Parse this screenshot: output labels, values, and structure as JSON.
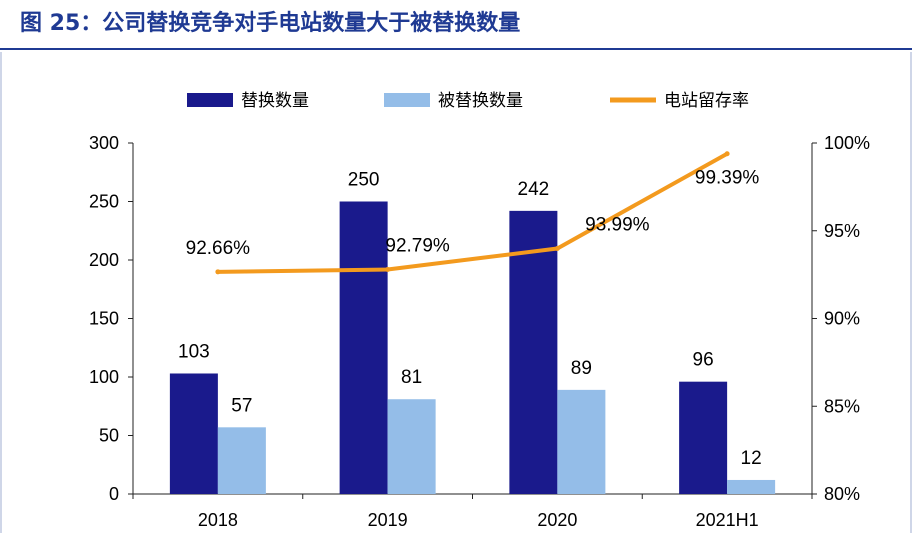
{
  "title": "图 25：公司替换竞争对手电站数量大于被替换数量",
  "chart_data": {
    "type": "bar",
    "categories": [
      "2018",
      "2019",
      "2020",
      "2021H1"
    ],
    "series": [
      {
        "name": "替换数量",
        "type": "bar",
        "axis": "left",
        "color": "#1a1a8c",
        "values": [
          103,
          250,
          242,
          96
        ],
        "labels": [
          "103",
          "250",
          "242",
          "96"
        ]
      },
      {
        "name": "被替换数量",
        "type": "bar",
        "axis": "left",
        "color": "#94bde8",
        "values": [
          57,
          81,
          89,
          12
        ],
        "labels": [
          "57",
          "81",
          "89",
          "12"
        ]
      },
      {
        "name": "电站留存率",
        "type": "line",
        "axis": "right",
        "color": "#f39a1e",
        "values": [
          92.66,
          92.79,
          93.99,
          99.39
        ],
        "labels": [
          "92.66%",
          "92.79%",
          "93.99%",
          "99.39%"
        ]
      }
    ],
    "left_axis": {
      "min": 0,
      "max": 300,
      "ticks": [
        "0",
        "50",
        "100",
        "150",
        "200",
        "250",
        "300"
      ]
    },
    "right_axis": {
      "min": 80,
      "max": 100,
      "ticks": [
        "80%",
        "85%",
        "90%",
        "95%",
        "100%"
      ]
    },
    "grid": false,
    "legend_position": "top"
  }
}
